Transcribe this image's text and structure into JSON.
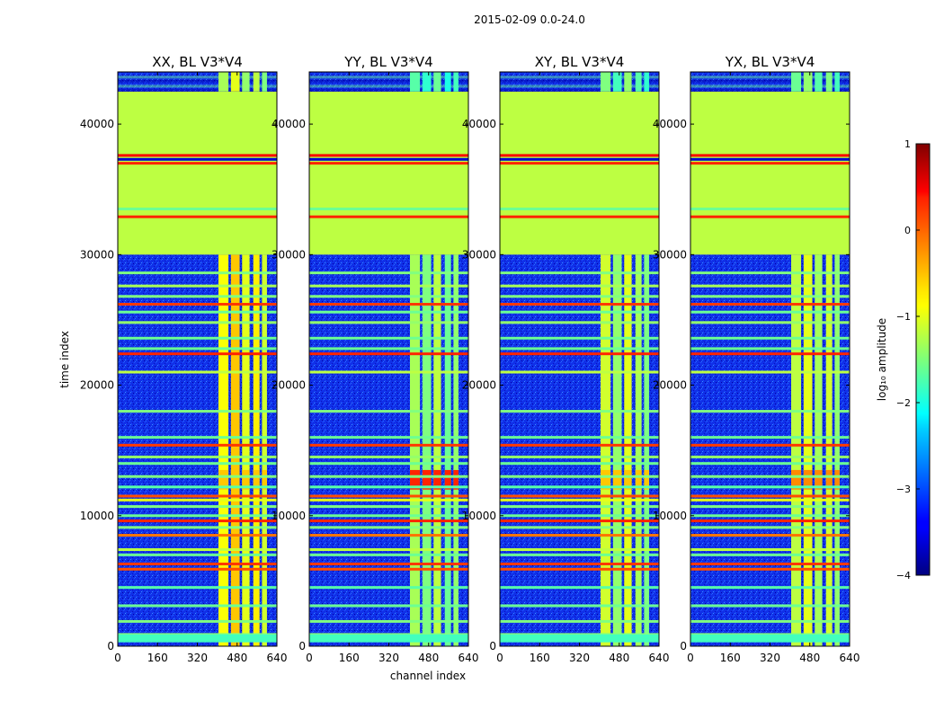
{
  "figure_title": "2015-02-09 0.0-24.0",
  "chart_data": {
    "type": "heatmap",
    "x_range": [
      0,
      640
    ],
    "y_range": [
      0,
      44000
    ],
    "x_ticks": [
      0,
      160,
      320,
      480,
      640
    ],
    "y_ticks": [
      0,
      10000,
      20000,
      30000,
      40000
    ],
    "xlabel": "channel index",
    "ylabel": "time index",
    "colorbar": {
      "label": "log₁₀ amplitude",
      "range": [
        -4,
        1
      ],
      "ticks": [
        1,
        0,
        -1,
        -2,
        -3,
        -4
      ],
      "tick_labels": [
        "1",
        "0",
        "−1",
        "−2",
        "−3",
        "−4"
      ],
      "colormap": "jet"
    },
    "panels": [
      {
        "title": "XX, BL V3*V4"
      },
      {
        "title": "YY, BL V3*V4"
      },
      {
        "title": "XY, BL V3*V4"
      },
      {
        "title": "YX, BL V3*V4"
      }
    ],
    "flagged_time_block": [
      30000,
      42500
    ],
    "flagged_value": -1.2,
    "active_channel_bands": [
      [
        405,
        445
      ],
      [
        455,
        490
      ],
      [
        500,
        530
      ],
      [
        545,
        570
      ],
      [
        580,
        600
      ]
    ]
  }
}
